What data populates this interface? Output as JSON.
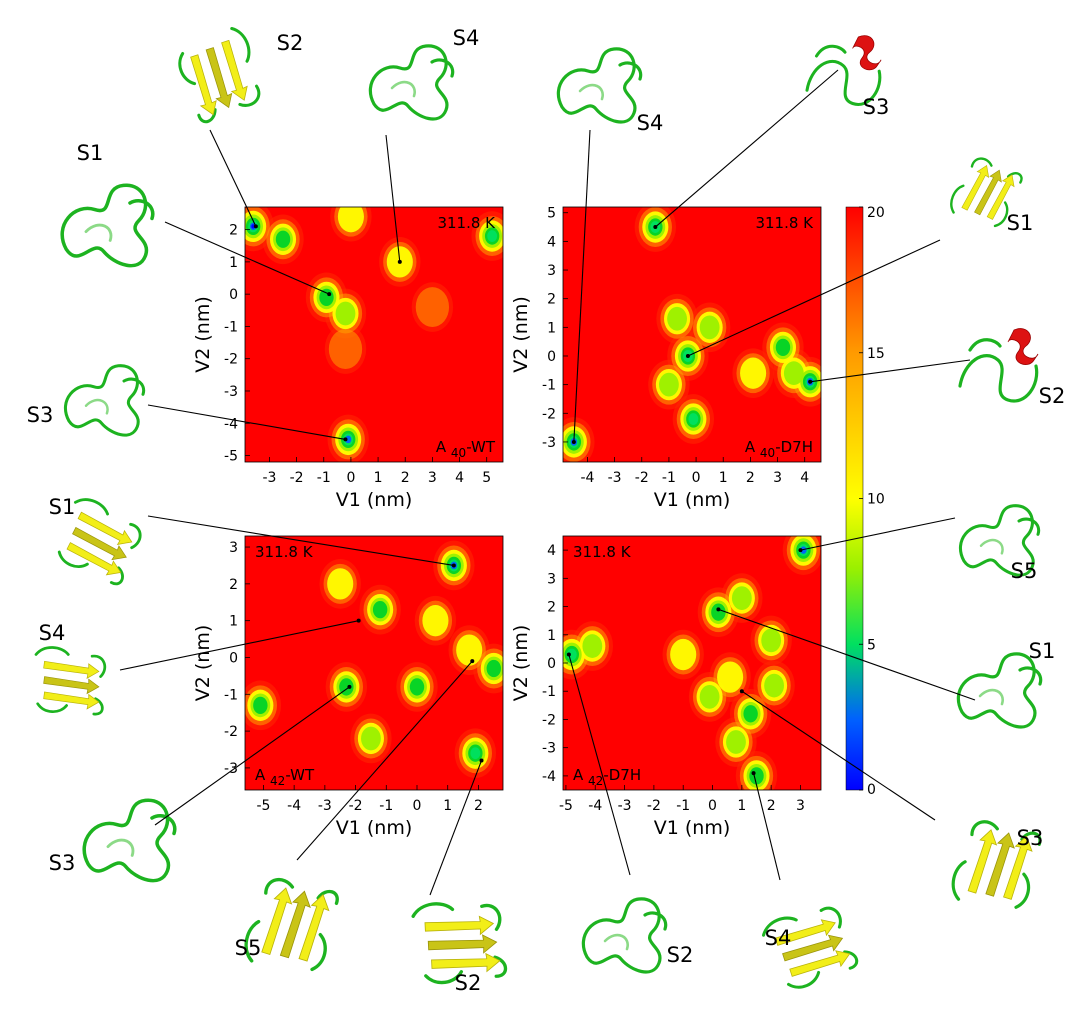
{
  "colorbar": {
    "ticks": [
      0,
      5,
      10,
      15,
      20
    ],
    "tick_labels": [
      "0",
      "5",
      "10",
      "15",
      "20"
    ]
  },
  "chart_data": [
    {
      "type": "heatmap",
      "panel": "A40-WT",
      "label": {
        "pre": "A",
        "sub": "40",
        "post": "-WT"
      },
      "temperature": "311.8 K",
      "xlabel": "V1 (nm)",
      "ylabel": "V2 (nm)",
      "xlim": [
        -3.9,
        5.6
      ],
      "ylim": [
        -5.2,
        2.7
      ],
      "xticks": [
        -3,
        -2,
        -1,
        0,
        1,
        2,
        3,
        4,
        5
      ],
      "yticks": [
        -5,
        -4,
        -3,
        -2,
        -1,
        0,
        1,
        2
      ],
      "basins": [
        {
          "x": -3.6,
          "y": 2.1,
          "depth": 0.0
        },
        {
          "x": -2.5,
          "y": 1.7,
          "depth": 5.0
        },
        {
          "x": -0.9,
          "y": -0.1,
          "depth": 5.0
        },
        {
          "x": -0.2,
          "y": -0.6,
          "depth": 6.0
        },
        {
          "x": 5.2,
          "y": 1.8,
          "depth": 3.0
        },
        {
          "x": 1.8,
          "y": 1.0,
          "depth": 10.0
        },
        {
          "x": -0.1,
          "y": -4.5,
          "depth": 1.5
        },
        {
          "x": 3.0,
          "y": -0.4,
          "depth": 11.0
        },
        {
          "x": 0.0,
          "y": 2.4,
          "depth": 9.0
        },
        {
          "x": -0.2,
          "y": -1.7,
          "depth": 11.0
        }
      ],
      "structures": [
        {
          "name": "S1",
          "x": -0.8,
          "y": 0.0
        },
        {
          "name": "S2",
          "x": -3.5,
          "y": 2.1
        },
        {
          "name": "S3",
          "x": -0.2,
          "y": -4.5
        },
        {
          "name": "S4",
          "x": 1.8,
          "y": 1.0
        }
      ]
    },
    {
      "type": "heatmap",
      "panel": "A40-D7H",
      "label": {
        "pre": "A",
        "sub": "40",
        "post": "-D7H"
      },
      "temperature": "311.8 K",
      "xlabel": "V1 (nm)",
      "ylabel": "V2 (nm)",
      "xlim": [
        -4.9,
        4.6
      ],
      "ylim": [
        -3.7,
        5.2
      ],
      "xticks": [
        -4,
        -3,
        -2,
        -1,
        0,
        1,
        2,
        3,
        4
      ],
      "yticks": [
        -3,
        -2,
        -1,
        0,
        1,
        2,
        3,
        4,
        5
      ],
      "basins": [
        {
          "x": -1.5,
          "y": 4.5,
          "depth": 2.0
        },
        {
          "x": -0.3,
          "y": 0.0,
          "depth": 3.0
        },
        {
          "x": -0.7,
          "y": 1.3,
          "depth": 6.0
        },
        {
          "x": -1.0,
          "y": -1.0,
          "depth": 6.0
        },
        {
          "x": -0.1,
          "y": -2.2,
          "depth": 2.0
        },
        {
          "x": 0.5,
          "y": 1.0,
          "depth": 6.0
        },
        {
          "x": 3.2,
          "y": 0.3,
          "depth": 5.0
        },
        {
          "x": 4.2,
          "y": -0.9,
          "depth": 1.5
        },
        {
          "x": -4.5,
          "y": -3.0,
          "depth": 1.5
        },
        {
          "x": 2.1,
          "y": -0.6,
          "depth": 9.0
        },
        {
          "x": 3.6,
          "y": -0.6,
          "depth": 6.0
        }
      ],
      "structures": [
        {
          "name": "S1",
          "x": -0.3,
          "y": 0.0
        },
        {
          "name": "S2",
          "x": 4.2,
          "y": -0.9
        },
        {
          "name": "S3",
          "x": -1.5,
          "y": 4.5
        },
        {
          "name": "S4",
          "x": -4.5,
          "y": -3.0
        }
      ]
    },
    {
      "type": "heatmap",
      "panel": "A42-WT",
      "label": {
        "pre": "A",
        "sub": "42",
        "post": "-WT"
      },
      "temperature": "311.8 K",
      "xlabel": "V1 (nm)",
      "ylabel": "V2 (nm)",
      "xlim": [
        -5.6,
        2.8
      ],
      "ylim": [
        -3.6,
        3.3
      ],
      "xticks": [
        -5,
        -4,
        -3,
        -2,
        -1,
        0,
        1,
        2
      ],
      "yticks": [
        -3,
        -2,
        -1,
        0,
        1,
        2,
        3
      ],
      "basins": [
        {
          "x": 1.2,
          "y": 2.5,
          "depth": 0.5
        },
        {
          "x": -1.2,
          "y": 1.3,
          "depth": 4.0
        },
        {
          "x": -5.1,
          "y": -1.3,
          "depth": 4.0
        },
        {
          "x": -2.3,
          "y": -0.8,
          "depth": 5.0
        },
        {
          "x": 0.0,
          "y": -0.8,
          "depth": 5.0
        },
        {
          "x": -1.5,
          "y": -2.2,
          "depth": 6.0
        },
        {
          "x": 1.9,
          "y": -2.6,
          "depth": 2.5
        },
        {
          "x": 2.5,
          "y": -0.3,
          "depth": 4.0
        },
        {
          "x": -2.5,
          "y": 2.0,
          "depth": 8.0
        },
        {
          "x": 0.6,
          "y": 1.0,
          "depth": 9.0
        },
        {
          "x": 1.7,
          "y": 0.2,
          "depth": 9.0
        }
      ],
      "structures": [
        {
          "name": "S1",
          "x": 1.2,
          "y": 2.5
        },
        {
          "name": "S2",
          "x": 2.1,
          "y": -2.8
        },
        {
          "name": "S3",
          "x": -2.2,
          "y": -0.8
        },
        {
          "name": "S4",
          "x": -1.9,
          "y": 1.0
        },
        {
          "name": "S5",
          "x": 1.8,
          "y": -0.1
        }
      ]
    },
    {
      "type": "heatmap",
      "panel": "A42-D7H",
      "label": {
        "pre": "A",
        "sub": "42",
        "post": "-D7H"
      },
      "temperature": "311.8 K",
      "xlabel": "V1 (nm)",
      "ylabel": "V2 (nm)",
      "xlim": [
        -5.1,
        3.7
      ],
      "ylim": [
        -4.5,
        4.5
      ],
      "xticks": [
        -5,
        -4,
        -3,
        -2,
        -1,
        0,
        1,
        2,
        3
      ],
      "yticks": [
        -4,
        -3,
        -2,
        -1,
        0,
        1,
        2,
        3,
        4
      ],
      "basins": [
        {
          "x": 3.1,
          "y": 4.0,
          "depth": 1.0
        },
        {
          "x": 0.2,
          "y": 1.8,
          "depth": 5.0
        },
        {
          "x": -4.8,
          "y": 0.3,
          "depth": 2.0
        },
        {
          "x": -4.1,
          "y": 0.6,
          "depth": 6.0
        },
        {
          "x": 1.5,
          "y": -4.0,
          "depth": 5.0
        },
        {
          "x": 1.3,
          "y": -1.8,
          "depth": 5.0
        },
        {
          "x": -0.1,
          "y": -1.2,
          "depth": 6.0
        },
        {
          "x": 2.0,
          "y": 0.8,
          "depth": 6.0
        },
        {
          "x": 1.0,
          "y": 2.3,
          "depth": 6.0
        },
        {
          "x": 2.1,
          "y": -0.8,
          "depth": 7.0
        },
        {
          "x": 0.8,
          "y": -2.8,
          "depth": 7.0
        },
        {
          "x": -1.0,
          "y": 0.3,
          "depth": 8.0
        },
        {
          "x": 0.6,
          "y": -0.5,
          "depth": 9.0
        }
      ],
      "structures": [
        {
          "name": "S1",
          "x": 0.2,
          "y": 1.9
        },
        {
          "name": "S2",
          "x": -4.9,
          "y": 0.3
        },
        {
          "name": "S3",
          "x": 1.0,
          "y": -1.0
        },
        {
          "name": "S4",
          "x": 1.4,
          "y": -3.9
        },
        {
          "name": "S5",
          "x": 3.0,
          "y": 4.0
        }
      ]
    }
  ]
}
